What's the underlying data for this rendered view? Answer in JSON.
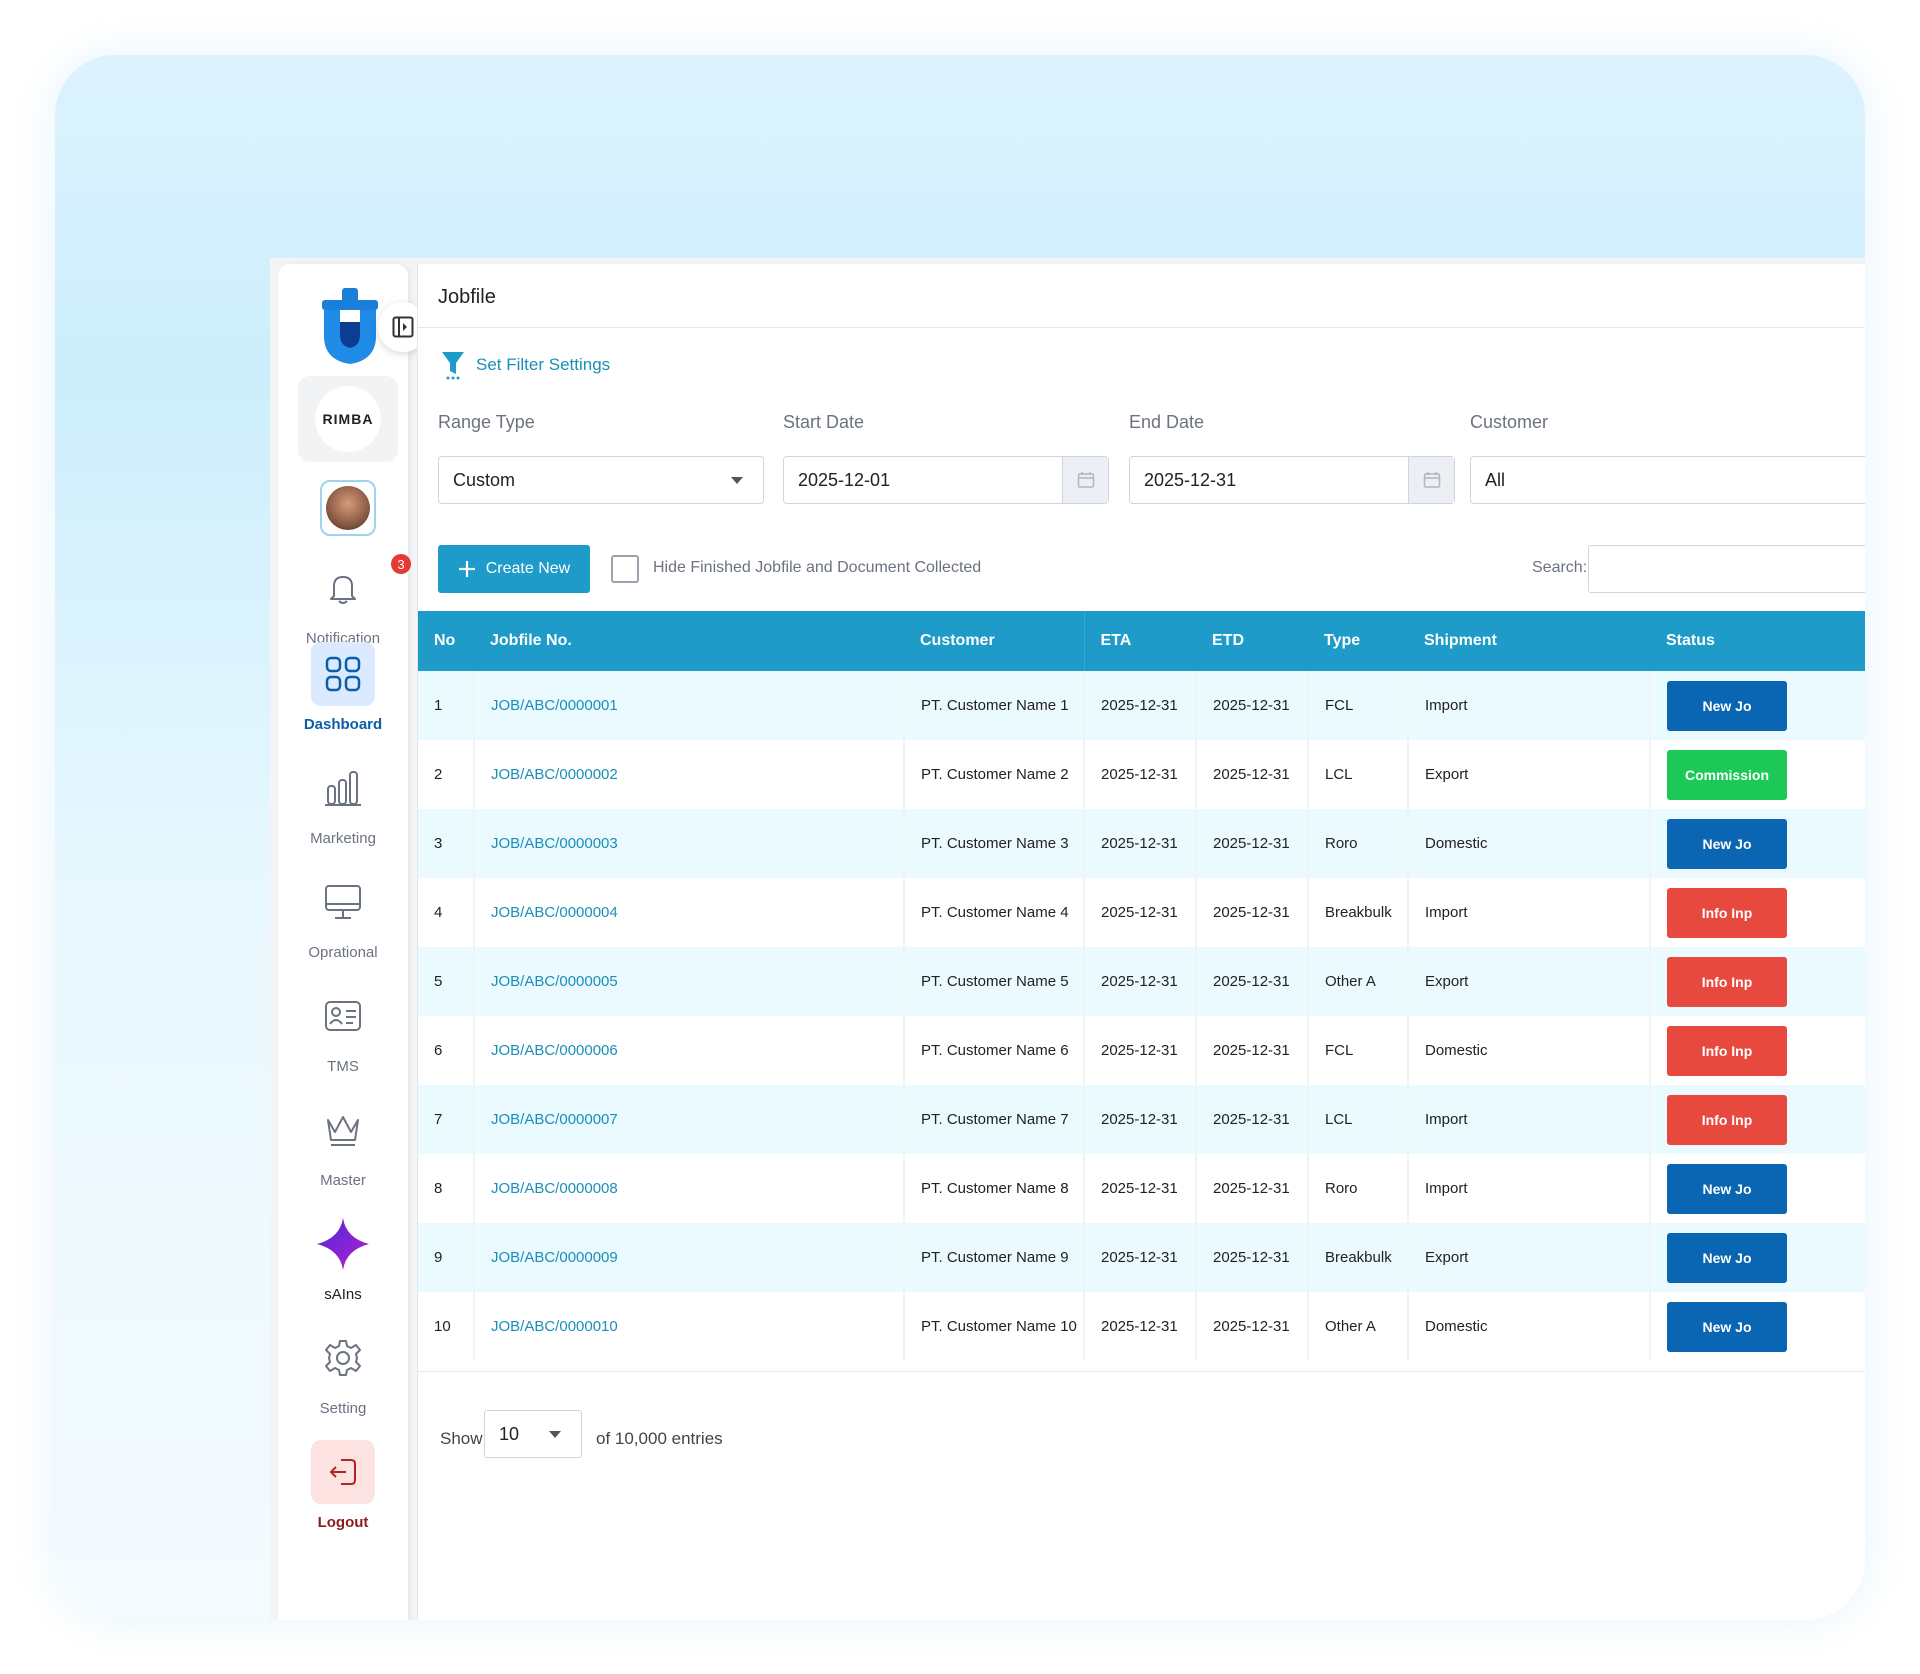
{
  "app": {
    "company_logo_text": "RIMBA",
    "collapse_icon": "sidebar-toggle-icon"
  },
  "sidebar": {
    "notification_count": "3",
    "items": [
      {
        "label": "Notification",
        "icon": "bell-icon"
      },
      {
        "label": "Dashboard",
        "icon": "grid-icon"
      },
      {
        "label": "Marketing",
        "icon": "bar-chart-icon"
      },
      {
        "label": "Oprational",
        "icon": "monitor-icon"
      },
      {
        "label": "TMS",
        "icon": "id-card-icon"
      },
      {
        "label": "Master",
        "icon": "crown-icon"
      },
      {
        "label": "sAIns",
        "icon": "sparkle-icon"
      },
      {
        "label": "Setting",
        "icon": "gear-icon"
      },
      {
        "label": "Logout",
        "icon": "logout-icon"
      }
    ],
    "active": "Dashboard"
  },
  "header": {
    "title": "Jobfile"
  },
  "filters": {
    "link_label": "Set Filter Settings",
    "range_type_label": "Range Type",
    "range_type_value": "Custom",
    "start_date_label": "Start Date",
    "start_date_value": "2025-12-01",
    "end_date_label": "End Date",
    "end_date_value": "2025-12-31",
    "customer_label": "Customer",
    "customer_value": "All"
  },
  "toolbar": {
    "create_label": "Create New",
    "hide_finished_label": "Hide Finished Jobfile and Document Collected",
    "search_label": "Search:"
  },
  "table": {
    "columns": [
      "No",
      "Jobfile No.",
      "Customer",
      "ETA",
      "ETD",
      "Type",
      "Shipment",
      "Status"
    ],
    "rows": [
      {
        "no": "1",
        "jobfile": "JOB/ABC/0000001",
        "customer": "PT. Customer Name 1",
        "eta": "2025-12-31",
        "etd": "2025-12-31",
        "type": "FCL",
        "shipment": "Import",
        "status": "New Jo",
        "status_color": "#0a66b2"
      },
      {
        "no": "2",
        "jobfile": "JOB/ABC/0000002",
        "customer": "PT. Customer Name 2",
        "eta": "2025-12-31",
        "etd": "2025-12-31",
        "type": "LCL",
        "shipment": "Export",
        "status": "Commission",
        "status_color": "#1dc956"
      },
      {
        "no": "3",
        "jobfile": "JOB/ABC/0000003",
        "customer": "PT. Customer Name 3",
        "eta": "2025-12-31",
        "etd": "2025-12-31",
        "type": "Roro",
        "shipment": "Domestic",
        "status": "New Jo",
        "status_color": "#0a66b2"
      },
      {
        "no": "4",
        "jobfile": "JOB/ABC/0000004",
        "customer": "PT. Customer Name 4",
        "eta": "2025-12-31",
        "etd": "2025-12-31",
        "type": "Breakbulk",
        "shipment": "Import",
        "status": "Info Inp",
        "status_color": "#e8493f"
      },
      {
        "no": "5",
        "jobfile": "JOB/ABC/0000005",
        "customer": "PT. Customer Name 5",
        "eta": "2025-12-31",
        "etd": "2025-12-31",
        "type": "Other A",
        "shipment": "Export",
        "status": "Info Inp",
        "status_color": "#e8493f"
      },
      {
        "no": "6",
        "jobfile": "JOB/ABC/0000006",
        "customer": "PT. Customer Name 6",
        "eta": "2025-12-31",
        "etd": "2025-12-31",
        "type": "FCL",
        "shipment": "Domestic",
        "status": "Info Inp",
        "status_color": "#e8493f"
      },
      {
        "no": "7",
        "jobfile": "JOB/ABC/0000007",
        "customer": "PT. Customer Name 7",
        "eta": "2025-12-31",
        "etd": "2025-12-31",
        "type": "LCL",
        "shipment": "Import",
        "status": "Info Inp",
        "status_color": "#e8493f"
      },
      {
        "no": "8",
        "jobfile": "JOB/ABC/0000008",
        "customer": "PT. Customer Name 8",
        "eta": "2025-12-31",
        "etd": "2025-12-31",
        "type": "Roro",
        "shipment": "Import",
        "status": "New Jo",
        "status_color": "#0a66b2"
      },
      {
        "no": "9",
        "jobfile": "JOB/ABC/0000009",
        "customer": "PT. Customer Name 9",
        "eta": "2025-12-31",
        "etd": "2025-12-31",
        "type": "Breakbulk",
        "shipment": "Export",
        "status": "New Jo",
        "status_color": "#0a66b2"
      },
      {
        "no": "10",
        "jobfile": "JOB/ABC/0000010",
        "customer": "PT. Customer Name 10",
        "eta": "2025-12-31",
        "etd": "2025-12-31",
        "type": "Other A",
        "shipment": "Domestic",
        "status": "New Jo",
        "status_color": "#0a66b2"
      }
    ]
  },
  "pagination": {
    "show_label": "Show",
    "page_size": "10",
    "entries_label": "of 10,000 entries"
  },
  "colors": {
    "accent": "#1e9bc9",
    "brand_blue": "#0b5ea8"
  }
}
